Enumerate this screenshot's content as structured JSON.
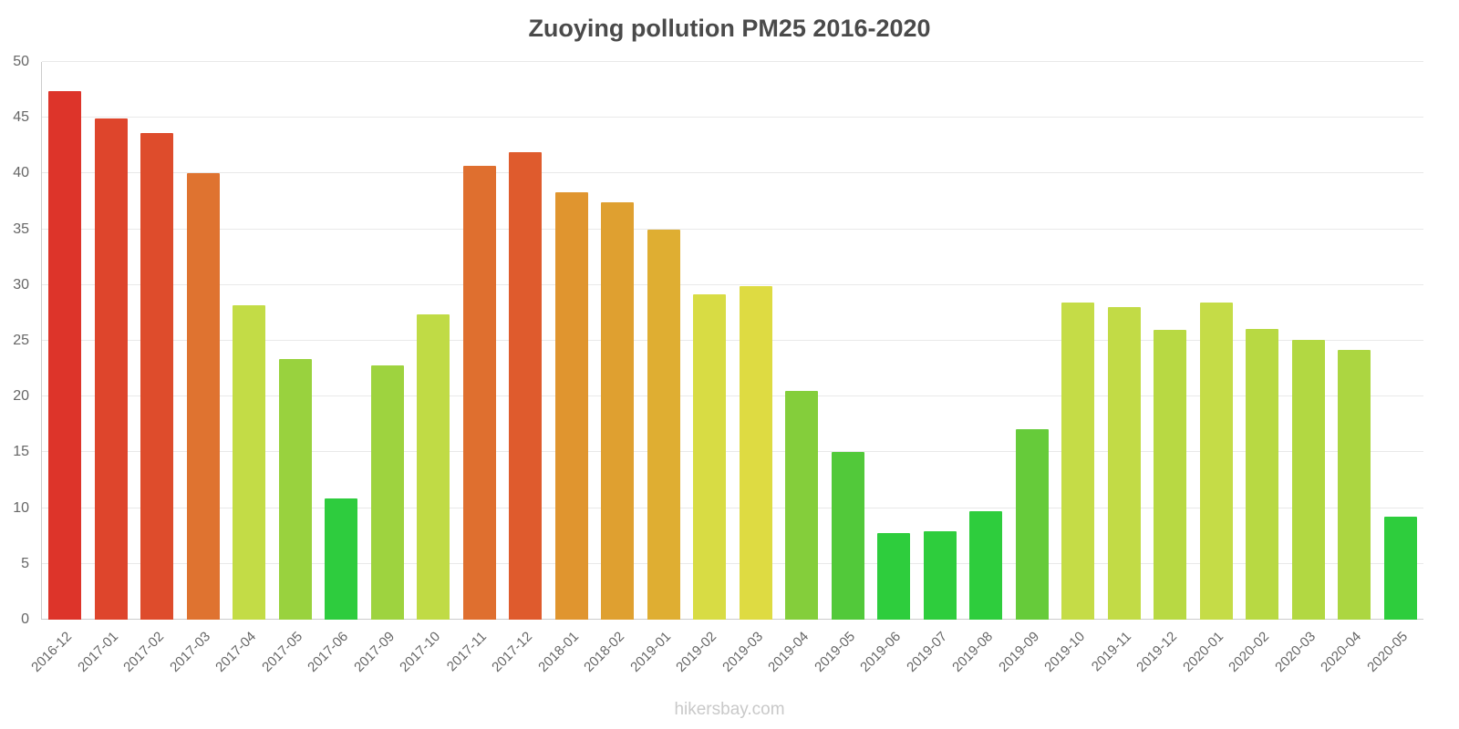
{
  "watermark": "hikersbay.com",
  "chart_data": {
    "type": "bar",
    "title": "Zuoying pollution PM25 2016-2020",
    "xlabel": "",
    "ylabel": "",
    "ylim": [
      0,
      50
    ],
    "yticks": [
      0,
      5,
      10,
      15,
      20,
      25,
      30,
      35,
      40,
      45,
      50
    ],
    "grid": true,
    "legend": "none",
    "categories": [
      "2016-12",
      "2017-01",
      "2017-02",
      "2017-03",
      "2017-04",
      "2017-05",
      "2017-06",
      "2017-09",
      "2017-10",
      "2017-11",
      "2017-12",
      "2018-01",
      "2018-02",
      "2019-01",
      "2019-02",
      "2019-03",
      "2019-04",
      "2019-05",
      "2019-06",
      "2019-07",
      "2019-08",
      "2019-09",
      "2019-10",
      "2019-11",
      "2019-12",
      "2020-01",
      "2020-02",
      "2020-03",
      "2020-04",
      "2020-05"
    ],
    "values": [
      47.4,
      44.9,
      43.6,
      40,
      28.2,
      23.4,
      10.9,
      22.8,
      27.4,
      40.7,
      41.9,
      38.3,
      37.4,
      35,
      29.2,
      29.9,
      20.5,
      15,
      7.8,
      7.9,
      9.7,
      17.1,
      28.4,
      28,
      26,
      28.4,
      26.1,
      25.1,
      24.2,
      9.2
    ],
    "colors": [
      "#dd342a",
      "#de452c",
      "#de4c2c",
      "#df7330",
      "#c3dc46",
      "#99d23e",
      "#2ecc3e",
      "#9ed33f",
      "#c0db45",
      "#df6f2f",
      "#df5b2d",
      "#e0952f",
      "#dfa030",
      "#dfae32",
      "#d8dc44",
      "#dedb42",
      "#84ce3b",
      "#52c93a",
      "#2ecd3d",
      "#2ecd3d",
      "#2ecd3d",
      "#66cb3a",
      "#c5dc47",
      "#c2db46",
      "#b8d943",
      "#c5dc47",
      "#b8d943",
      "#b2d842",
      "#acd641",
      "#2ecd3d"
    ]
  }
}
